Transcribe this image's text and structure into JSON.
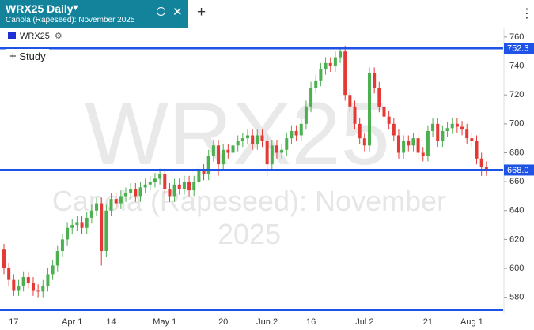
{
  "header": {
    "title": "WRX25 Daily",
    "subtitle": "Canola (Rapeseed): November 2025"
  },
  "watermark": {
    "symbol": "WRX25",
    "description": "Canola (Rapeseed): November 2025"
  },
  "legend": {
    "symbol": "WRX25",
    "study": "Study"
  },
  "chart_data": {
    "type": "candlestick",
    "categories": [
      null,
      null,
      "17",
      null,
      null,
      null,
      null,
      null,
      null,
      null,
      null,
      null,
      null,
      null,
      "Apr 1",
      null,
      null,
      null,
      null,
      null,
      null,
      null,
      "14",
      null,
      null,
      null,
      null,
      null,
      null,
      null,
      null,
      null,
      null,
      "May 1",
      null,
      null,
      null,
      null,
      null,
      null,
      null,
      null,
      null,
      null,
      null,
      "20",
      null,
      null,
      null,
      null,
      null,
      null,
      null,
      null,
      "Jun 2",
      null,
      null,
      null,
      null,
      null,
      null,
      null,
      null,
      "16",
      null,
      null,
      null,
      null,
      null,
      null,
      null,
      null,
      null,
      null,
      "Jul 2",
      null,
      null,
      null,
      null,
      null,
      null,
      null,
      null,
      null,
      null,
      null,
      null,
      "21",
      null,
      null,
      null,
      null,
      null,
      null,
      null,
      null,
      "Aug 1",
      null,
      null,
      null
    ],
    "open": [
      613,
      600,
      592,
      585,
      588,
      594,
      590,
      585,
      584,
      588,
      596,
      602,
      612,
      620,
      628,
      630,
      632,
      628,
      635,
      640,
      645,
      612,
      640,
      648,
      645,
      650,
      652,
      655,
      650,
      656,
      658,
      660,
      662,
      665,
      655,
      650,
      658,
      655,
      660,
      654,
      660,
      668,
      665,
      678,
      685,
      672,
      682,
      680,
      685,
      688,
      690,
      692,
      686,
      692,
      688,
      672,
      685,
      680,
      682,
      690,
      695,
      692,
      700,
      712,
      725,
      730,
      738,
      742,
      740,
      746,
      750,
      720,
      712,
      700,
      690,
      685,
      735,
      725,
      712,
      705,
      700,
      692,
      680,
      688,
      685,
      690,
      680,
      678,
      695,
      700,
      688,
      695,
      697,
      700,
      698,
      696,
      690,
      688,
      676,
      670
    ],
    "high": [
      617,
      604,
      596,
      592,
      598,
      598,
      594,
      589,
      592,
      600,
      606,
      616,
      624,
      632,
      634,
      636,
      636,
      639,
      644,
      649,
      649,
      644,
      652,
      652,
      654,
      656,
      659,
      659,
      660,
      662,
      664,
      666,
      669,
      669,
      659,
      662,
      662,
      664,
      664,
      664,
      672,
      672,
      682,
      689,
      689,
      686,
      686,
      689,
      692,
      694,
      696,
      696,
      696,
      696,
      692,
      689,
      689,
      686,
      694,
      699,
      699,
      704,
      716,
      729,
      734,
      742,
      746,
      746,
      750,
      753,
      754,
      724,
      716,
      704,
      694,
      739,
      739,
      729,
      716,
      709,
      704,
      696,
      692,
      692,
      694,
      694,
      684,
      699,
      704,
      704,
      699,
      701,
      704,
      704,
      702,
      700,
      694,
      692,
      680,
      674
    ],
    "low": [
      596,
      588,
      581,
      581,
      584,
      586,
      581,
      580,
      580,
      584,
      592,
      598,
      608,
      616,
      624,
      626,
      624,
      624,
      631,
      636,
      602,
      608,
      636,
      641,
      641,
      646,
      648,
      646,
      646,
      652,
      654,
      656,
      658,
      651,
      646,
      646,
      651,
      651,
      650,
      650,
      656,
      661,
      661,
      674,
      664,
      668,
      676,
      676,
      681,
      684,
      686,
      682,
      682,
      684,
      664,
      668,
      676,
      676,
      678,
      686,
      688,
      688,
      696,
      708,
      721,
      726,
      734,
      736,
      736,
      742,
      716,
      708,
      696,
      686,
      681,
      681,
      721,
      708,
      701,
      696,
      688,
      676,
      676,
      681,
      681,
      676,
      674,
      674,
      691,
      684,
      684,
      691,
      693,
      694,
      692,
      686,
      684,
      672,
      664,
      664
    ],
    "close": [
      600,
      592,
      585,
      588,
      594,
      590,
      585,
      584,
      588,
      596,
      602,
      612,
      620,
      628,
      630,
      632,
      628,
      635,
      640,
      645,
      612,
      640,
      648,
      645,
      650,
      652,
      655,
      650,
      656,
      658,
      660,
      662,
      665,
      655,
      650,
      658,
      655,
      660,
      654,
      660,
      668,
      665,
      678,
      685,
      672,
      682,
      680,
      685,
      688,
      690,
      692,
      686,
      692,
      688,
      672,
      685,
      680,
      682,
      690,
      695,
      692,
      700,
      712,
      725,
      730,
      738,
      742,
      740,
      746,
      750,
      720,
      712,
      700,
      690,
      685,
      735,
      725,
      712,
      705,
      700,
      692,
      680,
      688,
      685,
      690,
      680,
      678,
      695,
      700,
      688,
      695,
      697,
      700,
      698,
      696,
      690,
      688,
      676,
      670,
      668
    ],
    "up_color": "#4caf50",
    "down_color": "#e53935",
    "levels": [
      752.3,
      {
        "value": 668,
        "label": "668.0"
      }
    ],
    "level_color": "#1e53e5",
    "ylim": [
      570,
      766.5
    ],
    "yticks": [
      580,
      600,
      620,
      640,
      660,
      680,
      700,
      720,
      740,
      760
    ]
  }
}
